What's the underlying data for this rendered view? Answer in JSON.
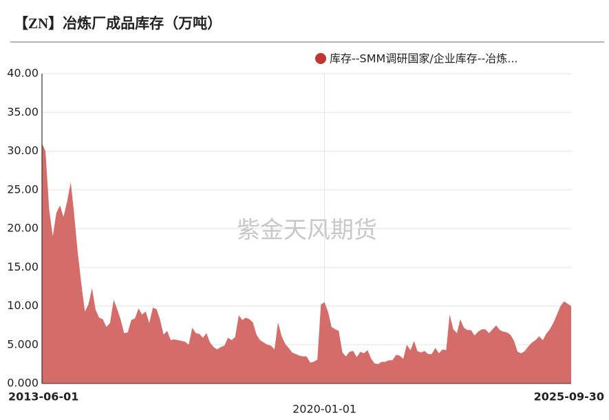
{
  "chart_data": {
    "type": "area",
    "title": "【ZN】冶炼厂成品库存（万吨）",
    "watermark": "紫金天风期货",
    "legend": "top-right",
    "grid": true,
    "x": [
      "2013-06-01",
      "2013-07-01",
      "2013-08-01",
      "2013-09-01",
      "2013-10-01",
      "2013-11-01",
      "2013-12-01",
      "2014-01-01",
      "2014-02-01",
      "2014-03-01",
      "2014-04-01",
      "2014-05-01",
      "2014-06-01",
      "2014-07-01",
      "2014-08-01",
      "2014-09-01",
      "2014-10-01",
      "2014-11-01",
      "2014-12-01",
      "2015-01-01",
      "2015-02-01",
      "2015-03-01",
      "2015-04-01",
      "2015-05-01",
      "2015-06-01",
      "2015-07-01",
      "2015-08-01",
      "2015-09-01",
      "2015-10-01",
      "2015-11-01",
      "2015-12-01",
      "2016-01-01",
      "2016-02-01",
      "2016-03-01",
      "2016-04-01",
      "2016-05-01",
      "2016-06-01",
      "2016-07-01",
      "2016-08-01",
      "2016-09-01",
      "2016-10-01",
      "2016-11-01",
      "2016-12-01",
      "2017-01-01",
      "2017-02-01",
      "2017-03-01",
      "2017-04-01",
      "2017-05-01",
      "2017-06-01",
      "2017-07-01",
      "2017-08-01",
      "2017-09-01",
      "2017-10-01",
      "2017-11-01",
      "2017-12-01",
      "2018-01-01",
      "2018-02-01",
      "2018-03-01",
      "2018-04-01",
      "2018-05-01",
      "2018-06-01",
      "2018-07-01",
      "2018-08-01",
      "2018-09-01",
      "2018-10-01",
      "2018-11-01",
      "2018-12-01",
      "2019-01-01",
      "2019-02-01",
      "2019-03-01",
      "2019-04-01",
      "2019-05-01",
      "2019-06-01",
      "2019-07-01",
      "2019-08-01",
      "2019-09-01",
      "2019-10-01",
      "2019-11-01",
      "2019-12-01",
      "2020-01-01",
      "2020-02-01",
      "2020-03-01",
      "2020-04-01",
      "2020-05-01",
      "2020-06-01",
      "2020-07-01",
      "2020-08-01",
      "2020-09-01",
      "2020-10-01",
      "2020-11-01",
      "2020-12-01",
      "2021-01-01",
      "2021-02-01",
      "2021-03-01",
      "2021-04-01",
      "2021-05-01",
      "2021-06-01",
      "2021-07-01",
      "2021-08-01",
      "2021-09-01",
      "2021-10-01",
      "2021-11-01",
      "2021-12-01",
      "2022-01-01",
      "2022-02-01",
      "2022-03-01",
      "2022-04-01",
      "2022-05-01",
      "2022-06-01",
      "2022-07-01",
      "2022-08-01",
      "2022-09-01",
      "2022-10-01",
      "2022-11-01",
      "2022-12-01",
      "2023-01-01",
      "2023-02-01",
      "2023-03-01",
      "2023-04-01",
      "2023-05-01",
      "2023-06-01",
      "2023-07-01",
      "2023-08-01",
      "2023-09-01",
      "2023-10-01",
      "2023-11-01",
      "2023-12-01",
      "2024-01-01",
      "2024-02-01",
      "2024-03-01",
      "2024-04-01",
      "2024-05-01",
      "2024-06-01",
      "2024-07-01",
      "2024-08-01",
      "2024-09-01",
      "2024-10-01",
      "2024-11-01",
      "2024-12-01",
      "2025-01-01",
      "2025-02-01",
      "2025-03-01",
      "2025-04-01",
      "2025-05-01",
      "2025-06-01",
      "2025-07-01",
      "2025-08-01",
      "2025-09-30"
    ],
    "series": [
      {
        "name": "库存--SMM调研国家/企业库存--冶炼...",
        "color": "#d46c6a",
        "legend_color": "#c23531",
        "values": [
          31,
          30,
          22.5,
          19,
          22,
          23,
          21.5,
          23.5,
          26,
          22,
          17,
          13,
          9.3,
          10.2,
          12.3,
          9.5,
          8.5,
          8.3,
          7.3,
          7.8,
          10.8,
          9.7,
          8.3,
          6.5,
          6.6,
          8.2,
          8.4,
          9.7,
          8.9,
          9.3,
          7.8,
          9.8,
          9.6,
          8.3,
          6.3,
          6.8,
          5.6,
          5.7,
          5.6,
          5.5,
          5.4,
          5.0,
          7.2,
          6.5,
          6.4,
          5.9,
          6.5,
          5.3,
          4.7,
          4.4,
          4.7,
          4.9,
          5.9,
          5.6,
          6.0,
          8.8,
          8.2,
          8.5,
          8.3,
          7.9,
          6.3,
          5.6,
          5.3,
          5.0,
          4.9,
          4.4,
          7.9,
          6.1,
          5.1,
          4.6,
          4.0,
          3.8,
          3.6,
          3.5,
          3.5,
          2.7,
          2.8,
          3.1,
          10.2,
          10.5,
          9.2,
          7.3,
          7.0,
          6.8,
          4.0,
          3.5,
          4.1,
          4.2,
          3.4,
          4.1,
          3.9,
          4.3,
          3.2,
          2.6,
          2.5,
          2.8,
          2.8,
          3.0,
          3.0,
          3.7,
          3.6,
          3.2,
          5.0,
          4.3,
          5.5,
          4.2,
          4.0,
          4.2,
          3.8,
          3.8,
          4.6,
          3.9,
          4.4,
          4.3,
          8.9,
          7.0,
          6.5,
          8.3,
          7.2,
          6.9,
          6.9,
          6.2,
          6.7,
          7.0,
          7.0,
          6.5,
          7.0,
          7.5,
          6.9,
          6.7,
          6.6,
          6.3,
          5.5,
          4.1,
          3.9,
          4.2,
          4.8,
          5.3,
          5.6,
          6.1,
          5.6,
          6.4,
          7.0,
          7.8,
          8.9,
          10.0,
          10.6,
          10.0
        ]
      }
    ],
    "xlim": [
      "2013-06-01",
      "2025-09-30"
    ],
    "xticks": [
      "2013-06-01",
      "2020-01-01",
      "2025-09-30"
    ],
    "ylim": [
      0,
      40
    ],
    "yticks": [
      {
        "value": 0,
        "label": "0.000"
      },
      {
        "value": 5,
        "label": "5.000"
      },
      {
        "value": 10,
        "label": "10.00"
      },
      {
        "value": 15,
        "label": "15.00"
      },
      {
        "value": 20,
        "label": "20.00"
      },
      {
        "value": 25,
        "label": "25.00"
      },
      {
        "value": 30,
        "label": "30.00"
      },
      {
        "value": 35,
        "label": "35.00"
      },
      {
        "value": 40,
        "label": "40.00"
      }
    ]
  }
}
